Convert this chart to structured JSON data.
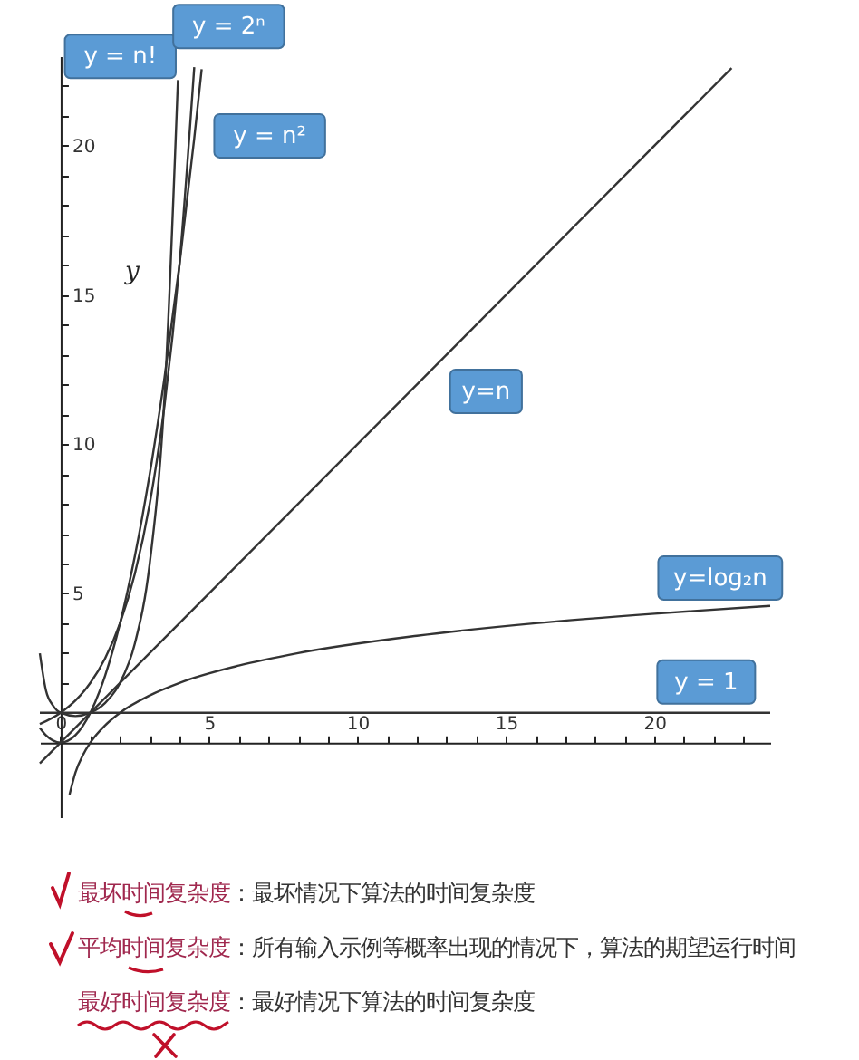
{
  "chart_data": {
    "type": "line",
    "xlim": [
      -0.7,
      23.9
    ],
    "ylim": [
      -2.5,
      23
    ],
    "xticks": [
      0,
      {
        "value": 1,
        "label": null
      },
      {
        "value": 2,
        "label": null
      },
      {
        "value": 3,
        "label": null
      },
      {
        "value": 4,
        "label": null
      },
      5,
      {
        "value": 6,
        "label": null
      },
      {
        "value": 7,
        "label": null
      },
      {
        "value": 8,
        "label": null
      },
      {
        "value": 9,
        "label": null
      },
      10,
      {
        "value": 11,
        "label": null
      },
      {
        "value": 12,
        "label": null
      },
      {
        "value": 13,
        "label": null
      },
      {
        "value": 14,
        "label": null
      },
      15,
      {
        "value": 16,
        "label": null
      },
      {
        "value": 17,
        "label": null
      },
      {
        "value": 18,
        "label": null
      },
      {
        "value": 19,
        "label": null
      },
      20,
      {
        "value": 21,
        "label": null
      },
      {
        "value": 22,
        "label": null
      },
      {
        "value": 23,
        "label": null
      }
    ],
    "yticks": [
      {
        "value": 1,
        "label": null
      },
      {
        "value": 2,
        "label": null
      },
      {
        "value": 3,
        "label": null
      },
      {
        "value": 4,
        "label": null
      },
      5,
      {
        "value": 6,
        "label": null
      },
      {
        "value": 7,
        "label": null
      },
      {
        "value": 8,
        "label": null
      },
      {
        "value": 9,
        "label": null
      },
      10,
      {
        "value": 11,
        "label": null
      },
      {
        "value": 12,
        "label": null
      },
      {
        "value": 13,
        "label": null
      },
      {
        "value": 14,
        "label": null
      },
      15,
      {
        "value": 16,
        "label": null
      },
      {
        "value": 17,
        "label": null
      },
      {
        "value": 18,
        "label": null
      },
      {
        "value": 19,
        "label": null
      },
      20,
      {
        "value": 21,
        "label": null
      },
      {
        "value": 22,
        "label": null
      }
    ],
    "ylabel": "y",
    "grid": false,
    "series": [
      {
        "color": "#333333",
        "x": [
          -0.7,
          -0.5,
          -0.25,
          0,
          0.5,
          1,
          1.5,
          2,
          2.5,
          3,
          3.5,
          3.95
        ],
        "values": [
          2.99,
          1.77,
          1.23,
          1,
          0.89,
          1,
          1.33,
          2,
          3.32,
          6,
          11.63,
          22.2
        ]
      },
      {
        "color": "#333333",
        "x": [
          -0.7,
          0,
          0.5,
          1,
          1.5,
          2,
          2.5,
          3,
          3.5,
          4,
          4.5
        ],
        "values": [
          0.62,
          1,
          1.41,
          2,
          2.83,
          4,
          5.66,
          8,
          11.31,
          16,
          22.63
        ]
      },
      {
        "color": "#333333",
        "x": [
          -0.7,
          -0.5,
          0,
          0.5,
          1,
          1.5,
          2,
          2.5,
          3,
          3.5,
          4,
          4.5,
          4.75
        ],
        "values": [
          0.49,
          0.25,
          0,
          0.25,
          1,
          2.25,
          4,
          6.25,
          9,
          12.25,
          16,
          20.25,
          22.56
        ]
      },
      {
        "color": "#333333",
        "x": [
          -0.7,
          22.6
        ],
        "values": [
          -0.7,
          22.6
        ]
      },
      {
        "color": "#333333",
        "x": [
          0.3,
          0.5,
          0.75,
          1,
          1.5,
          2,
          3,
          4,
          6,
          8,
          12,
          16,
          20,
          23.9
        ],
        "values": [
          -1.74,
          -1,
          -0.42,
          0,
          0.58,
          1,
          1.58,
          2,
          2.58,
          3,
          3.58,
          4,
          4.32,
          4.58
        ]
      },
      {
        "color": "#333333",
        "x": [
          -0.7,
          23.9
        ],
        "values": [
          1,
          1
        ]
      }
    ],
    "annotations": [
      {
        "text": "y = n!",
        "x": 3.78,
        "y": 21.9
      },
      {
        "text": "y = 2ⁿ",
        "x": 4.5,
        "y": 22.6
      },
      {
        "text": "y = n²",
        "x": 4.6,
        "y": 21
      },
      {
        "text": "y=n",
        "x": 12.8,
        "y": 12.8
      },
      {
        "text": "y=log₂n",
        "x": 22.4,
        "y": 4.48
      },
      {
        "text": "y = 1",
        "x": 21.5,
        "y": 1
      },
      "最坏时间复杂度：最坏情况下算法的时间复杂度",
      "平均时间复杂度：所有输入示例等概率出现的情况下，算法的期望运行时间",
      "最好时间复杂度：最好情况下算法的时间复杂度"
    ]
  }
}
